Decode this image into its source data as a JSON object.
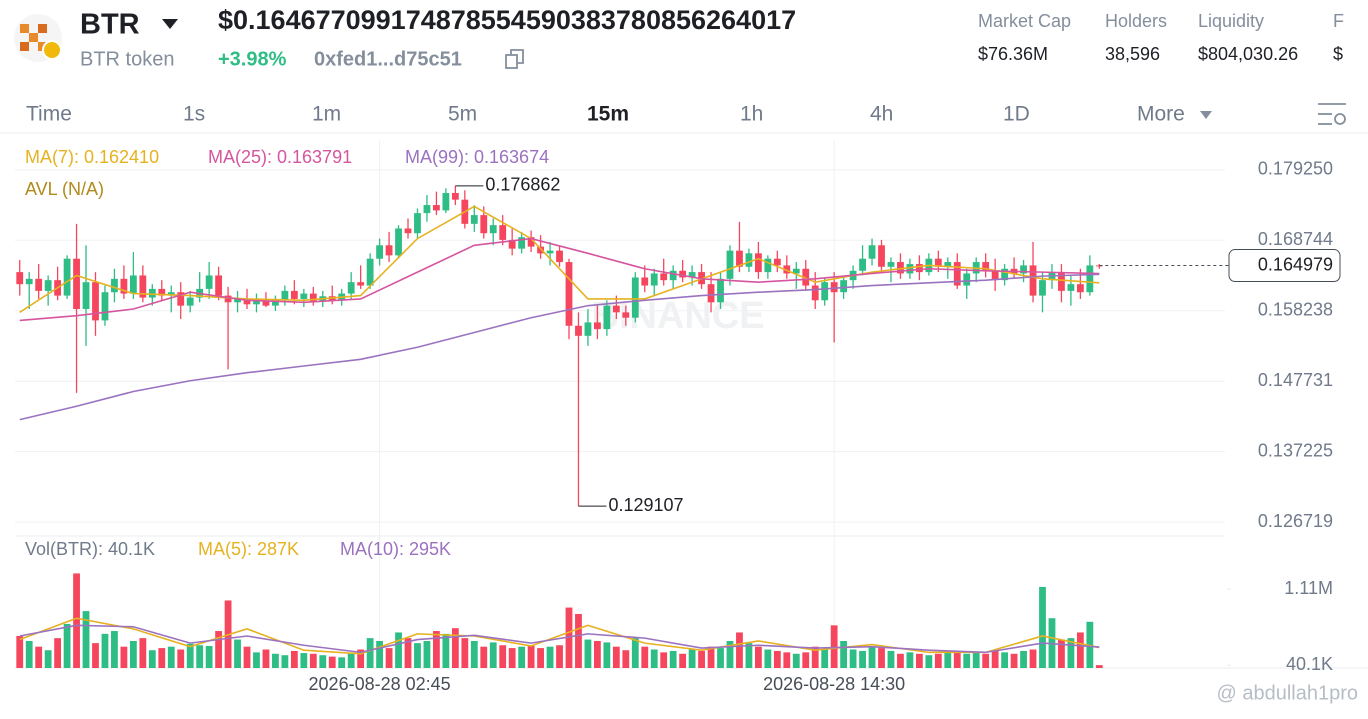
{
  "header": {
    "symbol": "BTR",
    "price": "$0.164677099174878554590383780856264017",
    "name": "BTR token",
    "change": "+3.98%",
    "address": "0xfed1...d75c51",
    "stats": [
      {
        "label": "Market Cap",
        "value": "$76.36M"
      },
      {
        "label": "Holders",
        "value": "38,596"
      },
      {
        "label": "Liquidity",
        "value": "$804,030.26"
      },
      {
        "label": "F",
        "value": "$"
      }
    ]
  },
  "tabs": {
    "items": [
      "Time",
      "1s",
      "1m",
      "5m",
      "15m",
      "1h",
      "4h",
      "1D",
      "More"
    ],
    "active": 4
  },
  "watermark": "@ abdullah1pro",
  "chart_data": {
    "type": "candlestick",
    "watermark": "BINANCE",
    "extra_legend": "AVL (N/A)",
    "up_color": "#2ebd85",
    "down_color": "#f6465d",
    "grid": true,
    "ylim": [
      0.1248,
      0.1837
    ],
    "yticks": [
      {
        "value": 0.17925,
        "label": "0.179250"
      },
      0.168744,
      0.158238,
      0.147731,
      0.137225,
      0.126719
    ],
    "categories": [
      null,
      null,
      null,
      null,
      null,
      null,
      null,
      null,
      null,
      null,
      null,
      null,
      null,
      null,
      null,
      null,
      null,
      null,
      null,
      null,
      null,
      null,
      null,
      null,
      null,
      null,
      null,
      null,
      null,
      null,
      null,
      null,
      null,
      null,
      null,
      null,
      null,
      null,
      "2026-08-28 02:45",
      null,
      null,
      null,
      null,
      null,
      null,
      null,
      null,
      null,
      null,
      null,
      null,
      null,
      null,
      null,
      null,
      null,
      null,
      null,
      null,
      null,
      null,
      null,
      null,
      null,
      null,
      null,
      null,
      null,
      null,
      null,
      null,
      null,
      null,
      null,
      null,
      null,
      null,
      null,
      null,
      null,
      null,
      null,
      null,
      null,
      null,
      null,
      "2026-08-28 14:30",
      null,
      null,
      null,
      null,
      null,
      null,
      null,
      null,
      null,
      null,
      null,
      null,
      null,
      null,
      null,
      null,
      null,
      null,
      null,
      null,
      null,
      null,
      null,
      null,
      null,
      null,
      null,
      null,
      null
    ],
    "ohlc": [
      [
        0.164,
        0.1658,
        0.1605,
        0.1622
      ],
      [
        0.1622,
        0.164,
        0.1585,
        0.163
      ],
      [
        0.163,
        0.1652,
        0.16,
        0.1612
      ],
      [
        0.1612,
        0.1635,
        0.159,
        0.1628
      ],
      [
        0.1628,
        0.1648,
        0.1598,
        0.1605
      ],
      [
        0.1605,
        0.1665,
        0.16,
        0.166
      ],
      [
        0.166,
        0.1712,
        0.146,
        0.1585
      ],
      [
        0.1585,
        0.168,
        0.153,
        0.1625
      ],
      [
        0.1625,
        0.164,
        0.1545,
        0.1568
      ],
      [
        0.1568,
        0.162,
        0.156,
        0.161
      ],
      [
        0.161,
        0.1645,
        0.1595,
        0.163
      ],
      [
        0.163,
        0.165,
        0.16,
        0.1608
      ],
      [
        0.1608,
        0.167,
        0.16,
        0.1635
      ],
      [
        0.1635,
        0.165,
        0.1595,
        0.1602
      ],
      [
        0.1602,
        0.1622,
        0.159,
        0.1615
      ],
      [
        0.1615,
        0.1628,
        0.1598,
        0.1605
      ],
      [
        0.1605,
        0.162,
        0.158,
        0.161
      ],
      [
        0.161,
        0.1625,
        0.157,
        0.159
      ],
      [
        0.159,
        0.1612,
        0.158,
        0.1602
      ],
      [
        0.1602,
        0.164,
        0.1595,
        0.1615
      ],
      [
        0.1615,
        0.1655,
        0.16,
        0.1635
      ],
      [
        0.1635,
        0.1648,
        0.1598,
        0.1605
      ],
      [
        0.1605,
        0.1618,
        0.1495,
        0.1595
      ],
      [
        0.1595,
        0.1612,
        0.158,
        0.16
      ],
      [
        0.16,
        0.1615,
        0.1585,
        0.1592
      ],
      [
        0.1592,
        0.1608,
        0.158,
        0.1598
      ],
      [
        0.1598,
        0.161,
        0.1588,
        0.159
      ],
      [
        0.159,
        0.1605,
        0.1582,
        0.1598
      ],
      [
        0.1598,
        0.162,
        0.159,
        0.1612
      ],
      [
        0.1612,
        0.1628,
        0.1592,
        0.16
      ],
      [
        0.16,
        0.1615,
        0.1588,
        0.1608
      ],
      [
        0.1608,
        0.1618,
        0.159,
        0.1596
      ],
      [
        0.1596,
        0.1612,
        0.1588,
        0.1604
      ],
      [
        0.1604,
        0.162,
        0.1592,
        0.1598
      ],
      [
        0.1598,
        0.1615,
        0.159,
        0.1608
      ],
      [
        0.1608,
        0.164,
        0.16,
        0.1625
      ],
      [
        0.1625,
        0.165,
        0.1615,
        0.162
      ],
      [
        0.162,
        0.1668,
        0.1615,
        0.166
      ],
      [
        0.166,
        0.169,
        0.165,
        0.168
      ],
      [
        0.168,
        0.17,
        0.1655,
        0.1665
      ],
      [
        0.1665,
        0.171,
        0.166,
        0.1705
      ],
      [
        0.1705,
        0.172,
        0.169,
        0.1698
      ],
      [
        0.1698,
        0.1735,
        0.169,
        0.1728
      ],
      [
        0.1728,
        0.1755,
        0.1715,
        0.174
      ],
      [
        0.174,
        0.176,
        0.1725,
        0.1732
      ],
      [
        0.1732,
        0.1765,
        0.1728,
        0.1758
      ],
      [
        0.1758,
        0.176862,
        0.174,
        0.1748
      ],
      [
        0.1748,
        0.1762,
        0.1705,
        0.1712
      ],
      [
        0.1712,
        0.174,
        0.17,
        0.1725
      ],
      [
        0.1725,
        0.1738,
        0.169,
        0.1698
      ],
      [
        0.1698,
        0.172,
        0.168,
        0.171
      ],
      [
        0.171,
        0.1725,
        0.168,
        0.1688
      ],
      [
        0.1688,
        0.1705,
        0.1665,
        0.1675
      ],
      [
        0.1675,
        0.17,
        0.1668,
        0.1692
      ],
      [
        0.1692,
        0.1702,
        0.167,
        0.1678
      ],
      [
        0.1678,
        0.1695,
        0.166,
        0.1668
      ],
      [
        0.1668,
        0.1685,
        0.165,
        0.1672
      ],
      [
        0.1672,
        0.168,
        0.1648,
        0.1655
      ],
      [
        0.1655,
        0.166,
        0.154,
        0.156
      ],
      [
        0.156,
        0.158,
        0.129107,
        0.1545
      ],
      [
        0.1545,
        0.1585,
        0.153,
        0.1565
      ],
      [
        0.1565,
        0.159,
        0.154,
        0.1555
      ],
      [
        0.1555,
        0.1598,
        0.1545,
        0.159
      ],
      [
        0.159,
        0.1605,
        0.157,
        0.158
      ],
      [
        0.158,
        0.159,
        0.156,
        0.1572
      ],
      [
        0.1572,
        0.164,
        0.1565,
        0.1632
      ],
      [
        0.1632,
        0.165,
        0.161,
        0.162
      ],
      [
        0.162,
        0.1645,
        0.1605,
        0.1638
      ],
      [
        0.1638,
        0.166,
        0.162,
        0.1628
      ],
      [
        0.1628,
        0.165,
        0.1615,
        0.1642
      ],
      [
        0.1642,
        0.1658,
        0.1625,
        0.1632
      ],
      [
        0.1632,
        0.165,
        0.162,
        0.164
      ],
      [
        0.164,
        0.1652,
        0.1615,
        0.1622
      ],
      [
        0.1622,
        0.164,
        0.158,
        0.1595
      ],
      [
        0.1595,
        0.164,
        0.1585,
        0.163
      ],
      [
        0.163,
        0.168,
        0.162,
        0.1672
      ],
      [
        0.1672,
        0.1715,
        0.164,
        0.1648
      ],
      [
        0.1648,
        0.1675,
        0.164,
        0.1668
      ],
      [
        0.1668,
        0.1685,
        0.163,
        0.164
      ],
      [
        0.164,
        0.1665,
        0.163,
        0.166
      ],
      [
        0.166,
        0.1672,
        0.164,
        0.165
      ],
      [
        0.165,
        0.1665,
        0.163,
        0.1638
      ],
      [
        0.1638,
        0.1655,
        0.1615,
        0.1645
      ],
      [
        0.1645,
        0.1658,
        0.1612,
        0.162
      ],
      [
        0.162,
        0.164,
        0.1585,
        0.1598
      ],
      [
        0.1598,
        0.1632,
        0.159,
        0.1625
      ],
      [
        0.1625,
        0.164,
        0.1535,
        0.161
      ],
      [
        0.161,
        0.1635,
        0.16,
        0.1628
      ],
      [
        0.1628,
        0.165,
        0.1615,
        0.1642
      ],
      [
        0.1642,
        0.168,
        0.1635,
        0.166
      ],
      [
        0.166,
        0.169,
        0.165,
        0.168
      ],
      [
        0.168,
        0.1688,
        0.164,
        0.1648
      ],
      [
        0.1648,
        0.1662,
        0.1625,
        0.1655
      ],
      [
        0.1655,
        0.1668,
        0.163,
        0.1638
      ],
      [
        0.1638,
        0.166,
        0.163,
        0.1652
      ],
      [
        0.1652,
        0.1665,
        0.1628,
        0.164
      ],
      [
        0.164,
        0.1668,
        0.1635,
        0.166
      ],
      [
        0.166,
        0.1672,
        0.164,
        0.1648
      ],
      [
        0.1648,
        0.1662,
        0.163,
        0.1655
      ],
      [
        0.1655,
        0.1668,
        0.1615,
        0.162
      ],
      [
        0.162,
        0.1645,
        0.16,
        0.1638
      ],
      [
        0.1638,
        0.1662,
        0.1625,
        0.1655
      ],
      [
        0.1655,
        0.1668,
        0.1632,
        0.1642
      ],
      [
        0.1642,
        0.166,
        0.1612,
        0.1628
      ],
      [
        0.1628,
        0.1652,
        0.162,
        0.1645
      ],
      [
        0.1645,
        0.1662,
        0.163,
        0.1638
      ],
      [
        0.1638,
        0.1658,
        0.1625,
        0.165
      ],
      [
        0.165,
        0.1685,
        0.1595,
        0.1605
      ],
      [
        0.1605,
        0.164,
        0.158,
        0.1628
      ],
      [
        0.1628,
        0.1652,
        0.1615,
        0.164
      ],
      [
        0.164,
        0.1652,
        0.1595,
        0.1612
      ],
      [
        0.1612,
        0.1635,
        0.159,
        0.1622
      ],
      [
        0.1622,
        0.1645,
        0.16,
        0.161
      ],
      [
        0.161,
        0.1665,
        0.1605,
        0.165
      ],
      [
        0.165,
        0.1652,
        0.1645,
        0.164979
      ]
    ],
    "series": [
      {
        "name": "MA(7): 0.162410",
        "color": "#e6b220",
        "x": [
          0,
          6,
          12,
          18,
          24,
          30,
          36,
          42,
          48,
          54,
          60,
          66,
          72,
          78,
          84,
          90,
          96,
          102,
          108,
          114
        ],
        "values": [
          0.158,
          0.1635,
          0.1608,
          0.1605,
          0.16,
          0.1598,
          0.1605,
          0.169,
          0.1738,
          0.169,
          0.16,
          0.16,
          0.163,
          0.166,
          0.1625,
          0.164,
          0.165,
          0.1645,
          0.163,
          0.16241
        ]
      },
      {
        "name": "MA(25): 0.163791",
        "color": "#d6559f",
        "x": [
          0,
          6,
          12,
          18,
          24,
          30,
          36,
          42,
          48,
          54,
          60,
          66,
          72,
          78,
          84,
          90,
          96,
          102,
          108,
          114
        ],
        "values": [
          0.1568,
          0.1575,
          0.1585,
          0.161,
          0.1598,
          0.1595,
          0.16,
          0.164,
          0.168,
          0.169,
          0.1668,
          0.1645,
          0.163,
          0.1625,
          0.163,
          0.1638,
          0.1645,
          0.1642,
          0.164,
          0.163791
        ]
      },
      {
        "name": "MA(99): 0.163674",
        "color": "#9b72c0",
        "x": [
          0,
          6,
          12,
          18,
          24,
          30,
          36,
          42,
          48,
          54,
          60,
          66,
          72,
          78,
          84,
          90,
          96,
          102,
          108,
          114
        ],
        "values": [
          0.142,
          0.144,
          0.1462,
          0.1478,
          0.149,
          0.15,
          0.151,
          0.1528,
          0.155,
          0.1572,
          0.159,
          0.1598,
          0.1605,
          0.161,
          0.1614,
          0.162,
          0.1624,
          0.1628,
          0.1634,
          0.163674
        ]
      }
    ],
    "volume": {
      "title": "Vol(BTR): 40.1K",
      "ylim": [
        0,
        1730000
      ],
      "yticks": [
        {
          "value": 1110000,
          "label": "1.11M"
        },
        {
          "value": 40100,
          "label": "40.1K"
        }
      ],
      "values": [
        450000,
        380000,
        300000,
        250000,
        420000,
        620000,
        1330000,
        800000,
        350000,
        480000,
        520000,
        300000,
        380000,
        420000,
        250000,
        280000,
        300000,
        260000,
        340000,
        320000,
        310000,
        520000,
        950000,
        400000,
        300000,
        220000,
        260000,
        200000,
        180000,
        240000,
        210000,
        200000,
        180000,
        160000,
        150000,
        200000,
        260000,
        420000,
        380000,
        280000,
        500000,
        420000,
        350000,
        380000,
        520000,
        480000,
        560000,
        420000,
        380000,
        300000,
        360000,
        320000,
        280000,
        300000,
        320000,
        280000,
        300000,
        320000,
        850000,
        760000,
        400000,
        380000,
        360000,
        300000,
        250000,
        420000,
        300000,
        260000,
        220000,
        240000,
        200000,
        260000,
        240000,
        300000,
        280000,
        380000,
        500000,
        350000,
        300000,
        260000,
        240000,
        220000,
        200000,
        220000,
        300000,
        260000,
        600000,
        380000,
        260000,
        240000,
        300000,
        280000,
        240000,
        200000,
        220000,
        200000,
        180000,
        200000,
        220000,
        240000,
        200000,
        220000,
        200000,
        240000,
        220000,
        200000,
        240000,
        260000,
        1140000,
        700000,
        400000,
        420000,
        500000,
        650000,
        40100
      ],
      "series": [
        {
          "name": "MA(5): 287K",
          "color": "#e6b220",
          "x": [
            0,
            6,
            12,
            18,
            24,
            30,
            36,
            42,
            48,
            54,
            60,
            66,
            72,
            78,
            84,
            90,
            96,
            102,
            108,
            114
          ],
          "values": [
            400000,
            700000,
            550000,
            300000,
            550000,
            250000,
            200000,
            480000,
            450000,
            310000,
            600000,
            350000,
            250000,
            380000,
            250000,
            330000,
            220000,
            220000,
            450000,
            287000
          ]
        },
        {
          "name": "MA(10): 295K",
          "color": "#9b72c0",
          "x": [
            0,
            6,
            12,
            18,
            24,
            30,
            36,
            42,
            48,
            54,
            60,
            66,
            72,
            78,
            84,
            90,
            96,
            102,
            108,
            114
          ],
          "values": [
            450000,
            600000,
            580000,
            350000,
            450000,
            320000,
            220000,
            400000,
            460000,
            350000,
            480000,
            420000,
            280000,
            320000,
            280000,
            300000,
            250000,
            220000,
            350000,
            295000
          ]
        }
      ]
    }
  }
}
